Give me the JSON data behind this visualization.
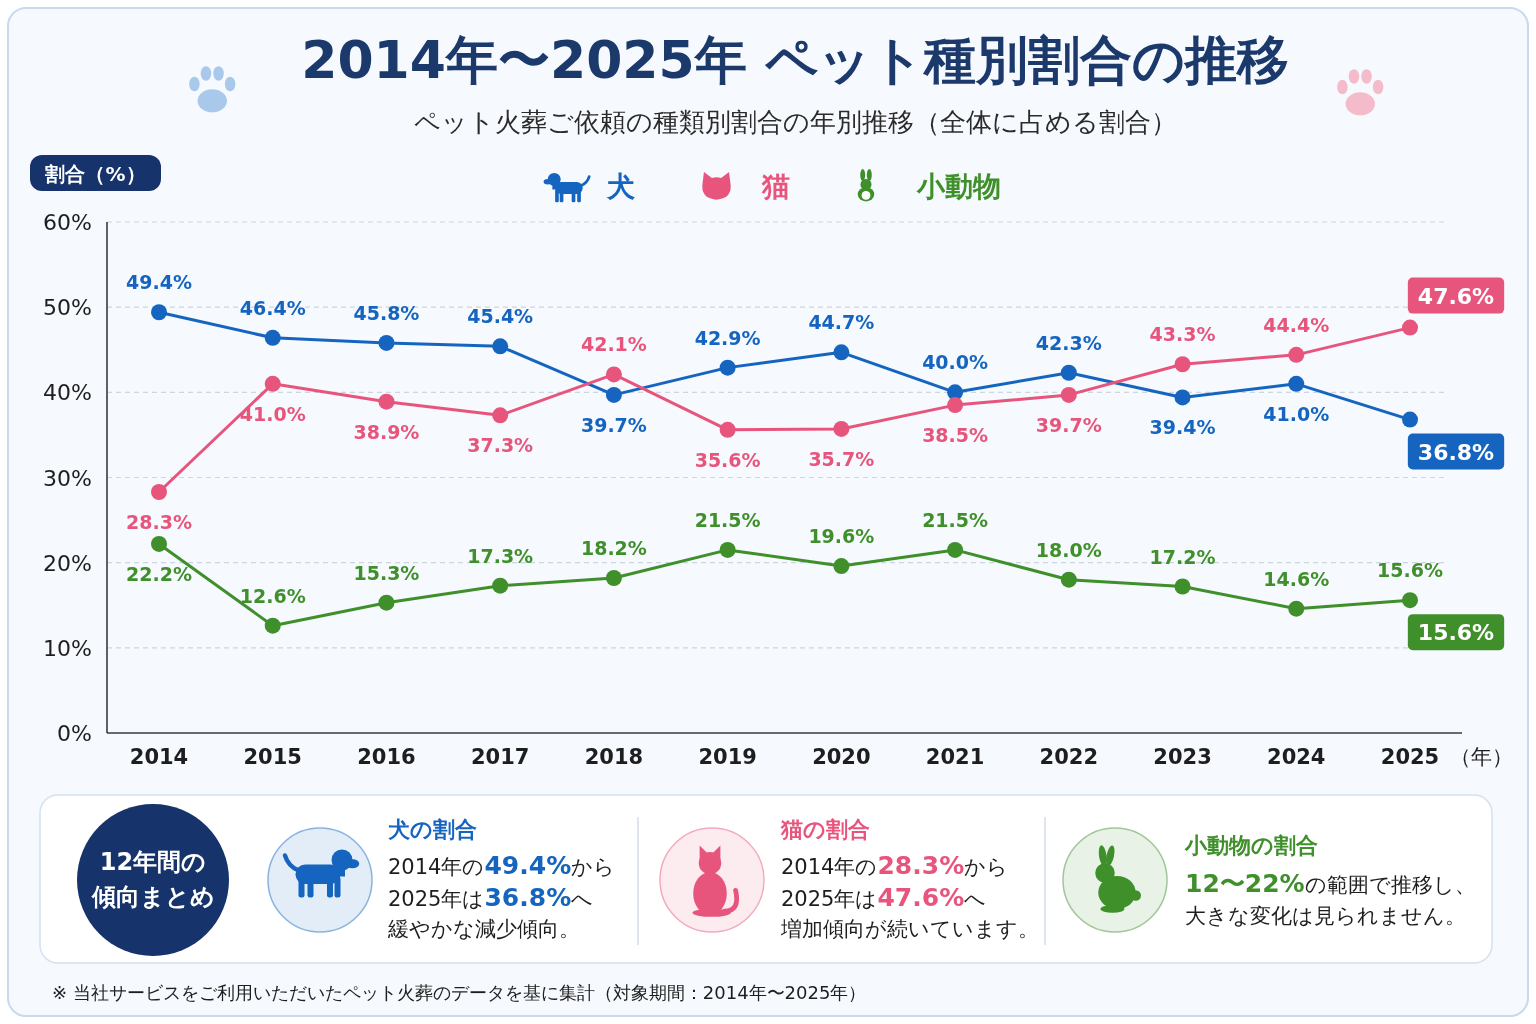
{
  "chart_data": {
    "type": "line",
    "title": "2014年〜2025年 ペット種別割合の推移",
    "subtitle": "ペット火葬ご依頼の種類別割合の年別推移（全体に占める割合）",
    "ylabel": "割合（%）",
    "xlabel": "（年）",
    "categories": [
      "2014",
      "2015",
      "2016",
      "2017",
      "2018",
      "2019",
      "2020",
      "2021",
      "2022",
      "2023",
      "2024",
      "2025"
    ],
    "series": [
      {
        "name": "犬",
        "color": "#1565c0",
        "values": [
          49.4,
          46.4,
          45.8,
          45.4,
          39.7,
          42.9,
          44.7,
          40.0,
          42.3,
          39.4,
          41.0,
          36.8
        ],
        "value_labels": [
          "49.4%",
          "46.4%",
          "45.8%",
          "45.4%",
          "39.7%",
          "42.9%",
          "44.7%",
          "40.0%",
          "42.3%",
          "39.4%",
          "41.0%",
          null
        ]
      },
      {
        "name": "猫",
        "color": "#e8557c",
        "values": [
          28.3,
          41.0,
          38.9,
          37.3,
          42.1,
          35.6,
          35.7,
          38.5,
          39.7,
          43.3,
          44.4,
          47.6
        ],
        "value_labels": [
          "28.3%",
          "41.0%",
          "38.9%",
          "37.3%",
          "42.1%",
          "35.6%",
          "35.7%",
          "38.5%",
          "39.7%",
          "43.3%",
          "44.4%",
          null
        ]
      },
      {
        "name": "小動物",
        "color": "#3f8f2b",
        "values": [
          22.2,
          12.6,
          15.3,
          17.3,
          18.2,
          21.5,
          19.6,
          21.5,
          18.0,
          17.2,
          14.6,
          15.6
        ],
        "value_labels": [
          "22.2%",
          "12.6%",
          "15.3%",
          "17.3%",
          "18.2%",
          "21.5%",
          "19.6%",
          "21.5%",
          "18.0%",
          "17.2%",
          "14.6%",
          "15.6%"
        ]
      }
    ],
    "ylim": [
      0,
      60
    ],
    "yticks": [
      {
        "value": 0,
        "label": "0%"
      },
      {
        "value": 10,
        "label": "10%"
      },
      {
        "value": 20,
        "label": "20%"
      },
      {
        "value": 30,
        "label": "30%"
      },
      {
        "value": 40,
        "label": "40%"
      },
      {
        "value": 50,
        "label": "50%"
      },
      {
        "value": 60,
        "label": "60%"
      }
    ],
    "grid": "y",
    "legend": "top",
    "marker": "circle",
    "annotations": [
      "12年間の",
      "傾向まとめ",
      "犬の割合",
      "2014年の**49.4%**から",
      "2025年は**36.8%**へ",
      "緩やかな減少傾向。",
      "猫の割合",
      "2014年の**28.3%**から",
      "2025年は**47.6%**へ",
      "増加傾向が続いています。",
      "小動物の割合",
      "**12〜22%**の範囲で推移し、",
      "大きな変化は見られません。",
      "※ 当社サービスをご利用いただいたペット火葬のデータを基に集計（対象期間：2014年〜2025年）",
      {
        "text": "47.6%",
        "x": "2025",
        "y": 47.6
      },
      {
        "text": "36.8%",
        "x": "2025",
        "y": 36.8
      },
      {
        "text": "15.6%",
        "x": "2025",
        "y": 15.6
      }
    ]
  }
}
